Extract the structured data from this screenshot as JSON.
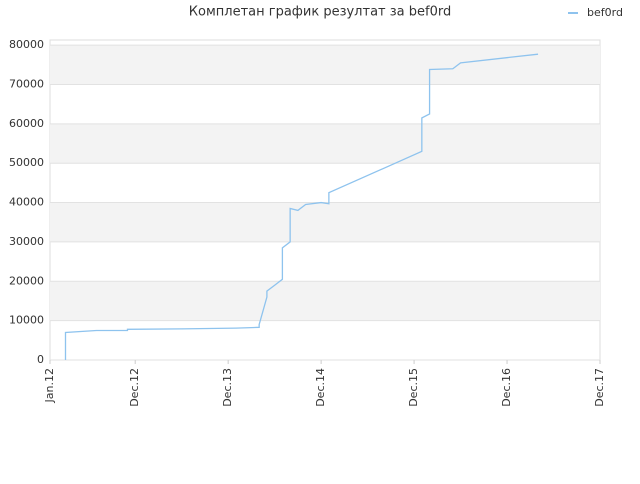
{
  "chart_data": {
    "type": "line",
    "title": "Комплетан график резултат за bef0rd",
    "x": [
      "Mar.12",
      "Mar.12",
      "Jul.12",
      "Nov.12",
      "Nov.12",
      "Jun.13",
      "Jan.14",
      "Apr.14",
      "Apr.14",
      "May.14",
      "May.14",
      "Jun.14",
      "Jul.14",
      "Jul.14",
      "Jul.14",
      "Aug.14",
      "Aug.14",
      "Sep.14",
      "Oct.14",
      "Dec.14",
      "Jan.15",
      "Jan.15",
      "Jan.16",
      "Jan.16",
      "Feb.16",
      "Feb.16",
      "May.16",
      "Jun.16",
      "Apr.17"
    ],
    "series": [
      {
        "name": "bef0rd",
        "color": "#8ec3ee",
        "values": [
          0,
          7000,
          7500,
          7500,
          7800,
          7900,
          8100,
          8300,
          9000,
          16000,
          17500,
          19000,
          20500,
          22000,
          28500,
          30000,
          38500,
          38000,
          39500,
          40000,
          39700,
          42500,
          53000,
          61500,
          62500,
          73800,
          74000,
          75500,
          77700
        ]
      }
    ],
    "xlim": [
      "Jan.12",
      "Dec.17"
    ],
    "xticks": [
      "Jan.12",
      "Dec.12",
      "Dec.13",
      "Dec.14",
      "Dec.15",
      "Dec.16",
      "Dec.17"
    ],
    "ylim": [
      0,
      81300
    ],
    "yticks": [
      0,
      10000,
      20000,
      30000,
      40000,
      50000,
      60000,
      70000,
      80000
    ],
    "grid": true,
    "legend": "top-right"
  }
}
